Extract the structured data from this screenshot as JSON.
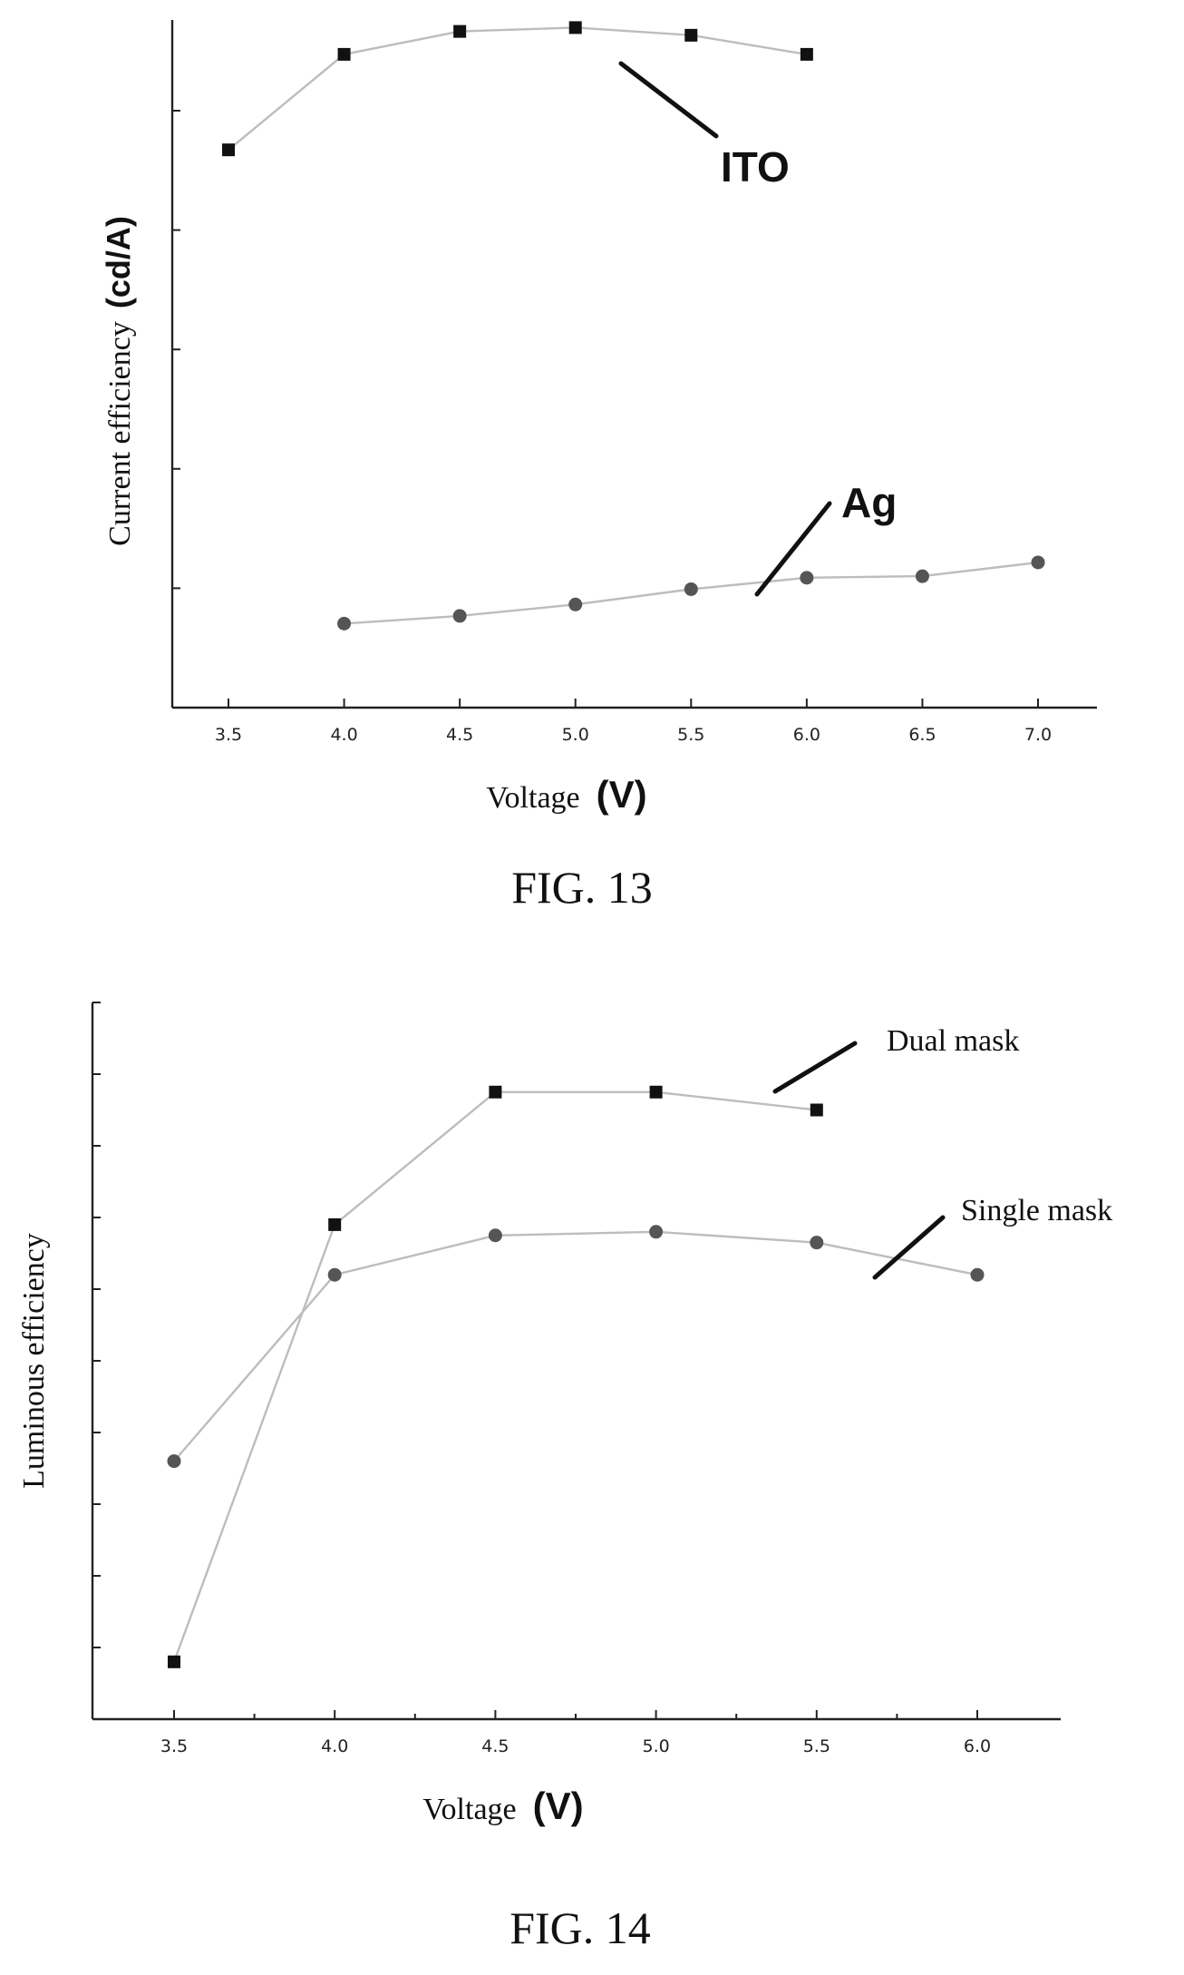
{
  "chart_data": [
    {
      "type": "line",
      "figure_caption": "FIG. 13",
      "xlabel_text": "Voltage",
      "xlabel_unit": "(V)",
      "ylabel_text": "Current efficiency",
      "ylabel_unit": "(cd/A)",
      "x_ticks": [
        "3.5",
        "4.0",
        "4.5",
        "5.0",
        "5.5",
        "6.0",
        "6.5",
        "7.0"
      ],
      "xlim": [
        3.25,
        7.25
      ],
      "ylim": [
        0,
        9
      ],
      "y_tick_count": 5,
      "grid": false,
      "series": [
        {
          "name": "ITO",
          "marker": "square",
          "color": "#111111",
          "x": [
            3.5,
            4.0,
            4.5,
            5.0,
            5.5,
            6.0
          ],
          "y": [
            7.3,
            8.55,
            8.85,
            8.9,
            8.8,
            8.55
          ]
        },
        {
          "name": "Ag",
          "marker": "circle",
          "color": "#555555",
          "x": [
            4.0,
            4.5,
            5.0,
            5.5,
            6.0,
            6.5,
            7.0
          ],
          "y": [
            1.1,
            1.2,
            1.35,
            1.55,
            1.7,
            1.72,
            1.9
          ]
        }
      ]
    },
    {
      "type": "line",
      "figure_caption": "FIG. 14",
      "xlabel_text": "Voltage",
      "xlabel_unit": "(V)",
      "ylabel_text": "Luminous efficiency",
      "ylabel_unit": "",
      "x_ticks": [
        "3.5",
        "4.0",
        "4.5",
        "5.0",
        "5.5",
        "6.0"
      ],
      "xlim": [
        3.25,
        6.25
      ],
      "ylim": [
        0,
        10
      ],
      "y_tick_count": 10,
      "grid": false,
      "series": [
        {
          "name": "Dual mask",
          "marker": "square",
          "color": "#111111",
          "x": [
            3.5,
            4.0,
            4.5,
            5.0,
            5.5
          ],
          "y": [
            0.8,
            6.9,
            8.75,
            8.75,
            8.5
          ]
        },
        {
          "name": "Single mask",
          "marker": "circle",
          "color": "#555555",
          "x": [
            3.5,
            4.0,
            4.5,
            5.0,
            5.5,
            6.0
          ],
          "y": [
            3.6,
            6.2,
            6.75,
            6.8,
            6.65,
            6.2
          ]
        }
      ]
    }
  ]
}
